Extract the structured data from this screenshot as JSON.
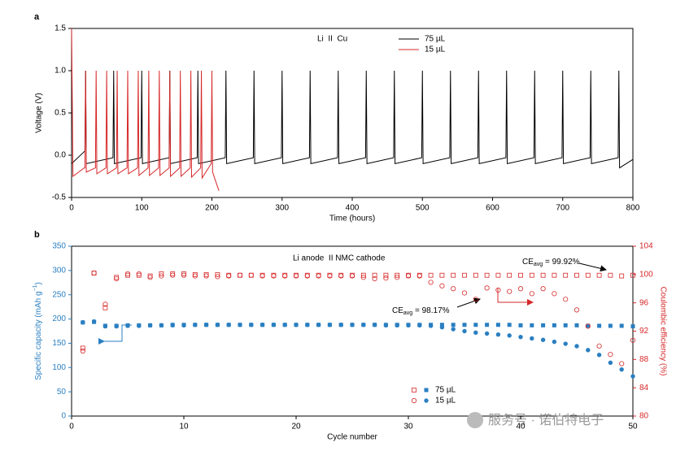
{
  "chart_data": [
    {
      "type": "line",
      "panel": "a",
      "annotation": "Li  II  Cu",
      "xlabel": "Time (hours)",
      "ylabel": "Voltage (V)",
      "xlim": [
        0,
        800
      ],
      "xticks": [
        0,
        100,
        200,
        300,
        400,
        500,
        600,
        700,
        800
      ],
      "ylim": [
        -0.5,
        1.5
      ],
      "yticks": [
        {
          "value": -0.5,
          "label": "-0.5"
        },
        {
          "value": 0,
          "label": "0.0"
        },
        {
          "value": 0.5,
          "label": "0.5"
        },
        {
          "value": 1,
          "label": "1.0"
        },
        {
          "value": 1.5,
          "label": "1.5"
        }
      ],
      "series": [
        {
          "name": "75 µL",
          "color": "#000000",
          "x": [
            0,
            19,
            20,
            21,
            59,
            60,
            61,
            99,
            100,
            101,
            139,
            140,
            141,
            179,
            180,
            181,
            219,
            220,
            221,
            259,
            260,
            261,
            299,
            300,
            301,
            339,
            340,
            341,
            379,
            380,
            381,
            419,
            420,
            421,
            459,
            460,
            461,
            499,
            500,
            501,
            539,
            540,
            541,
            579,
            580,
            581,
            619,
            620,
            621,
            659,
            660,
            661,
            699,
            700,
            701,
            739,
            740,
            741,
            779,
            780,
            781,
            800
          ],
          "values": [
            -0.1,
            0.05,
            1,
            -0.1,
            -0.03,
            1,
            -0.1,
            -0.03,
            1,
            -0.1,
            -0.03,
            1,
            -0.1,
            -0.03,
            1,
            -0.1,
            -0.03,
            1,
            -0.1,
            -0.03,
            1,
            -0.1,
            -0.03,
            1,
            -0.1,
            -0.03,
            1,
            -0.1,
            -0.03,
            1,
            -0.1,
            -0.03,
            1,
            -0.1,
            -0.03,
            1,
            -0.1,
            -0.03,
            1,
            -0.1,
            -0.03,
            1,
            -0.1,
            -0.03,
            1,
            -0.1,
            -0.03,
            1,
            -0.1,
            -0.03,
            1,
            -0.1,
            -0.03,
            1,
            -0.1,
            -0.03,
            1,
            -0.1,
            -0.03,
            1,
            -0.15,
            -0.05
          ]
        },
        {
          "name": "15 µL",
          "color": "#d62728",
          "x": [
            0,
            2,
            18,
            19,
            20,
            21,
            34,
            35,
            36,
            49,
            50,
            51,
            64,
            65,
            66,
            79,
            80,
            81,
            94,
            95,
            96,
            109,
            110,
            111,
            124,
            125,
            126,
            139,
            140,
            141,
            154,
            155,
            156,
            169,
            170,
            171,
            184,
            185,
            186,
            199,
            200,
            201,
            205,
            210
          ],
          "values": [
            1.5,
            -0.25,
            -0.15,
            -0.15,
            1,
            -0.2,
            -0.15,
            1,
            -0.22,
            -0.15,
            1,
            -0.22,
            -0.15,
            1,
            -0.22,
            -0.15,
            1,
            -0.22,
            -0.15,
            1,
            -0.24,
            -0.15,
            1,
            -0.24,
            -0.15,
            1,
            -0.24,
            -0.15,
            1,
            -0.25,
            -0.15,
            1,
            -0.25,
            -0.15,
            1,
            -0.26,
            -0.15,
            1,
            -0.27,
            -0.1,
            1,
            -0.2,
            -0.3,
            -0.42
          ]
        }
      ]
    },
    {
      "type": "scatter",
      "panel": "b",
      "annotation": "Li anode  II NMC cathode",
      "xlabel": "Cycle number",
      "ylabel": [
        "Specific capacity (mAh g",
        "−1",
        ")"
      ],
      "y2label": "Coulombic efficiency (%)",
      "xlim": [
        0,
        50
      ],
      "xticks": [
        0,
        10,
        20,
        30,
        40,
        50
      ],
      "ylim": [
        0,
        350
      ],
      "yticks": [
        0,
        50,
        100,
        150,
        200,
        250,
        300,
        350
      ],
      "y2lim": [
        80,
        104
      ],
      "y2ticks": [
        80,
        84,
        88,
        92,
        96,
        100,
        104
      ],
      "color": "#2a7fc1",
      "y2_color": "#d62728",
      "x": [
        1,
        2,
        3,
        4,
        5,
        6,
        7,
        8,
        9,
        10,
        11,
        12,
        13,
        14,
        15,
        16,
        17,
        18,
        19,
        20,
        21,
        22,
        23,
        24,
        25,
        26,
        27,
        28,
        29,
        30,
        31,
        32,
        33,
        34,
        35,
        36,
        37,
        38,
        39,
        40,
        41,
        42,
        43,
        44,
        45,
        46,
        47,
        48,
        49,
        50
      ],
      "series": [
        {
          "name": "75 µL",
          "marker": "square",
          "values": [
            193,
            194,
            186,
            186,
            187,
            187,
            187,
            187,
            188,
            188,
            188,
            188,
            188,
            188,
            188,
            188,
            188,
            188,
            188,
            188,
            188,
            188,
            188,
            188,
            188,
            188,
            188,
            188,
            188,
            188,
            188,
            188,
            188,
            188,
            188,
            188,
            188,
            188,
            188,
            187,
            187,
            187,
            187,
            187,
            187,
            186,
            186,
            186,
            186,
            185
          ],
          "ce_values": [
            89.6,
            100.2,
            95.3,
            99.6,
            99.9,
            99.9,
            99.8,
            100.1,
            100.1,
            100.1,
            100,
            100,
            100,
            99.9,
            99.9,
            99.9,
            99.9,
            99.9,
            99.9,
            99.9,
            99.9,
            99.9,
            99.9,
            99.9,
            99.9,
            99.9,
            99.9,
            99.9,
            99.9,
            99.9,
            99.9,
            99.9,
            99.9,
            99.9,
            99.9,
            99.9,
            99.9,
            99.9,
            99.9,
            99.9,
            99.9,
            99.9,
            99.9,
            99.9,
            99.9,
            99.9,
            99.9,
            99.9,
            99.8,
            99.9
          ]
        },
        {
          "name": "15 µL",
          "marker": "circle",
          "values": [
            193,
            195,
            185,
            185,
            186,
            186,
            187,
            187,
            187,
            187,
            188,
            188,
            188,
            188,
            188,
            188,
            188,
            188,
            188,
            188,
            188,
            188,
            188,
            188,
            188,
            188,
            188,
            187,
            187,
            187,
            187,
            186,
            183,
            179,
            175,
            172,
            170,
            168,
            166,
            163,
            160,
            157,
            153,
            149,
            144,
            136,
            126,
            110,
            96,
            82
          ],
          "ce_values": [
            89.2,
            100.2,
            95.8,
            99.4,
            100.1,
            100.1,
            99.6,
            99.8,
            99.9,
            99.9,
            99.8,
            99.8,
            99.7,
            99.8,
            99.9,
            99.9,
            99.8,
            99.8,
            99.8,
            99.8,
            99.8,
            99.8,
            99.8,
            99.8,
            99.8,
            99.6,
            99.4,
            99.5,
            99.6,
            99.8,
            99.8,
            98.9,
            98.4,
            98.0,
            97.4,
            96.5,
            98.1,
            97.8,
            97.6,
            98.0,
            97.3,
            98.0,
            97.3,
            96.5,
            95.0,
            92.7,
            89.9,
            88.7,
            87.4,
            90.7
          ]
        }
      ],
      "callouts": [
        {
          "text": "CE",
          "sub": "avg",
          "rest": " = 99.92%"
        },
        {
          "text": "CE",
          "sub": "avg",
          "rest": " = 98.17%"
        }
      ]
    }
  ],
  "watermark": "服务号 · 诺伯特电子"
}
